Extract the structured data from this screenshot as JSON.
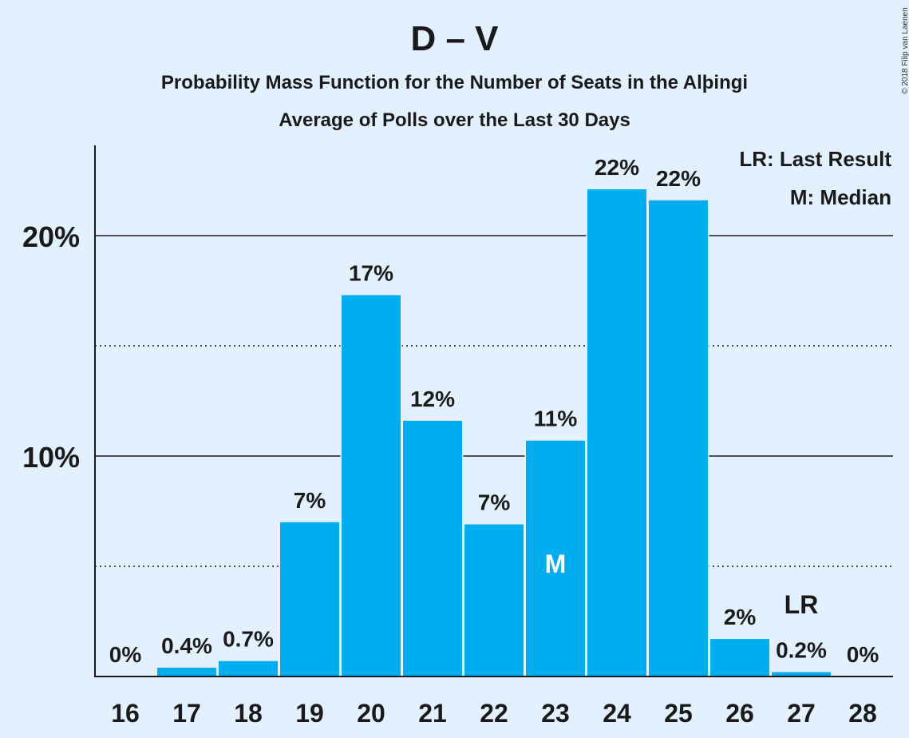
{
  "chart_data": {
    "type": "bar",
    "title": "D – V",
    "subtitle": "Probability Mass Function for the Number of Seats in the Alþingi",
    "subtitle2": "Average of Polls over the Last 30 Days",
    "categories": [
      "16",
      "17",
      "18",
      "19",
      "20",
      "21",
      "22",
      "23",
      "24",
      "25",
      "26",
      "27",
      "28"
    ],
    "values": [
      0,
      0.4,
      0.7,
      7.0,
      17.3,
      11.6,
      6.9,
      10.7,
      22.1,
      21.6,
      1.7,
      0.2,
      0
    ],
    "data_labels": [
      "0%",
      "0.4%",
      "0.7%",
      "7%",
      "17%",
      "12%",
      "7%",
      "11%",
      "22%",
      "22%",
      "2%",
      "0.2%",
      "0%"
    ],
    "ylim": [
      0,
      24
    ],
    "yticks": [
      {
        "value": 10,
        "label": "10%"
      },
      {
        "value": 20,
        "label": "20%"
      }
    ],
    "minor_gridlines": [
      5,
      15
    ],
    "median_category": "23",
    "median_marker": "M",
    "last_result_category": "27",
    "last_result_marker": "LR",
    "legend": [
      "LR: Last Result",
      "M: Median"
    ],
    "legend_position": "top-right",
    "bar_color": "#00aeef",
    "background": "#e2f0ff"
  },
  "copyright": "© 2018 Filip van Laenen"
}
